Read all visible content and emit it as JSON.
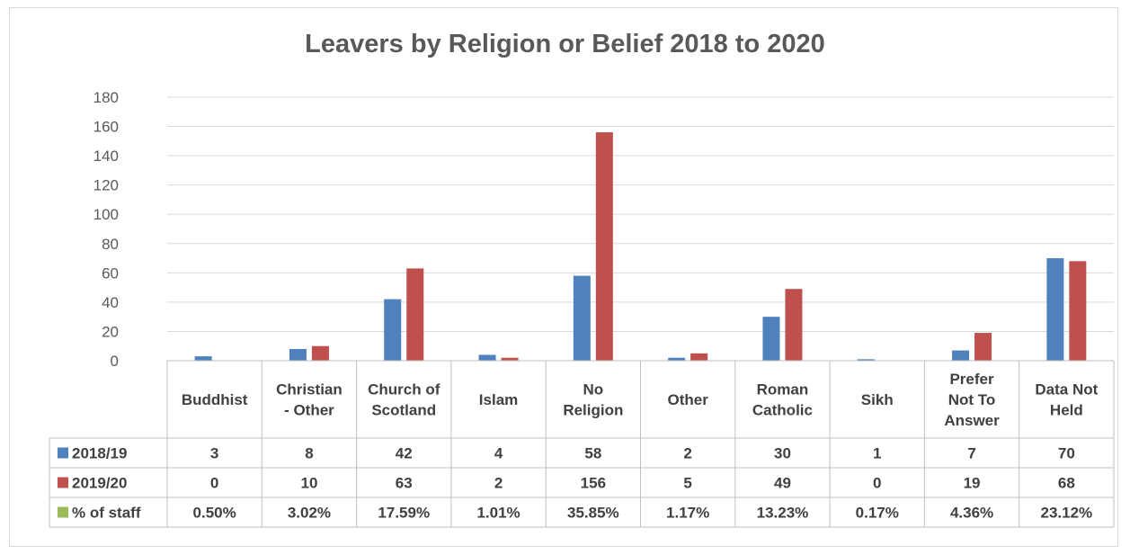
{
  "chart_data": {
    "type": "bar",
    "title": "Leavers by Religion or Belief 2018 to 2020",
    "ylim": [
      0,
      180
    ],
    "y_ticks": [
      0,
      20,
      40,
      60,
      80,
      100,
      120,
      140,
      160,
      180
    ],
    "gridlines": true,
    "legend": "data-table",
    "categories": [
      [
        "Buddhist"
      ],
      [
        "Christian",
        "- Other"
      ],
      [
        "Church of",
        "Scotland"
      ],
      [
        "Islam"
      ],
      [
        "No",
        "Religion"
      ],
      [
        "Other"
      ],
      [
        "Roman",
        "Catholic"
      ],
      [
        "Sikh"
      ],
      [
        "Prefer",
        "Not To",
        "Answer"
      ],
      [
        "Data Not",
        "Held"
      ]
    ],
    "series": [
      {
        "name": "2018/19",
        "color": "#4f81bd",
        "values": [
          3,
          8,
          42,
          4,
          58,
          2,
          30,
          1,
          7,
          70
        ]
      },
      {
        "name": "2019/20",
        "color": "#c0504d",
        "values": [
          0,
          10,
          63,
          2,
          156,
          5,
          49,
          0,
          19,
          68
        ]
      }
    ],
    "table_rows": [
      {
        "name": "2018/19",
        "color": "#4f81bd",
        "cells": [
          "3",
          "8",
          "42",
          "4",
          "58",
          "2",
          "30",
          "1",
          "7",
          "70"
        ]
      },
      {
        "name": "2019/20",
        "color": "#c0504d",
        "cells": [
          "0",
          "10",
          "63",
          "2",
          "156",
          "5",
          "49",
          "0",
          "19",
          "68"
        ]
      },
      {
        "name": "% of staff",
        "color": "#9bbb59",
        "cells": [
          "0.50%",
          "3.02%",
          "17.59%",
          "1.01%",
          "35.85%",
          "1.17%",
          "13.23%",
          "0.17%",
          "4.36%",
          "23.12%"
        ]
      }
    ]
  }
}
